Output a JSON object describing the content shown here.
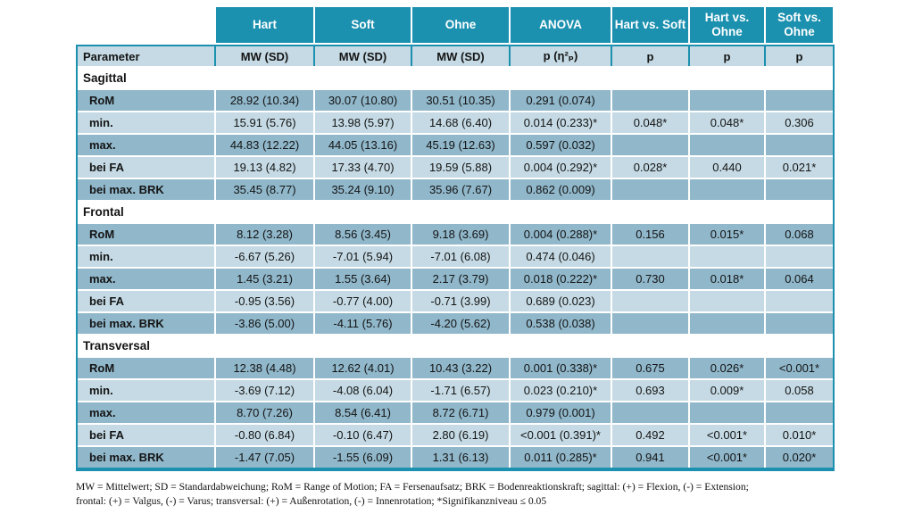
{
  "table": {
    "top_header": [
      "Hart",
      "Soft",
      "Ohne",
      "ANOVA",
      "Hart vs. Soft",
      "Hart vs. Ohne",
      "Soft vs. Ohne"
    ],
    "sub_header": [
      "Parameter",
      "MW (SD)",
      "MW (SD)",
      "MW (SD)",
      "p (η²ₚ)",
      "p",
      "p",
      "p"
    ],
    "sections": [
      {
        "name": "Sagittal",
        "rows": [
          {
            "label": "RoM",
            "cells": [
              "28.92 (10.34)",
              "30.07 (10.80)",
              "30.51 (10.35)",
              "0.291 (0.074)",
              "",
              "",
              ""
            ]
          },
          {
            "label": "min.",
            "cells": [
              "15.91 (5.76)",
              "13.98 (5.97)",
              "14.68 (6.40)",
              "0.014 (0.233)*",
              "0.048*",
              "0.048*",
              "0.306"
            ]
          },
          {
            "label": "max.",
            "cells": [
              "44.83 (12.22)",
              "44.05 (13.16)",
              "45.19 (12.63)",
              "0.597 (0.032)",
              "",
              "",
              ""
            ]
          },
          {
            "label": "bei FA",
            "cells": [
              "19.13 (4.82)",
              "17.33 (4.70)",
              "19.59 (5.88)",
              "0.004 (0.292)*",
              "0.028*",
              "0.440",
              "0.021*"
            ]
          },
          {
            "label": "bei max. BRK",
            "cells": [
              "35.45 (8.77)",
              "35.24 (9.10)",
              "35.96 (7.67)",
              "0.862 (0.009)",
              "",
              "",
              ""
            ]
          }
        ]
      },
      {
        "name": "Frontal",
        "rows": [
          {
            "label": "RoM",
            "cells": [
              "8.12 (3.28)",
              "8.56 (3.45)",
              "9.18 (3.69)",
              "0.004 (0.288)*",
              "0.156",
              "0.015*",
              "0.068"
            ]
          },
          {
            "label": "min.",
            "cells": [
              "-6.67 (5.26)",
              "-7.01 (5.94)",
              "-7.01 (6.08)",
              "0.474 (0.046)",
              "",
              "",
              ""
            ]
          },
          {
            "label": "max.",
            "cells": [
              "1.45 (3.21)",
              "1.55 (3.64)",
              "2.17 (3.79)",
              "0.018 (0.222)*",
              "0.730",
              "0.018*",
              "0.064"
            ]
          },
          {
            "label": "bei FA",
            "cells": [
              "-0.95 (3.56)",
              "-0.77 (4.00)",
              "-0.71 (3.99)",
              "0.689 (0.023)",
              "",
              "",
              ""
            ]
          },
          {
            "label": "bei max. BRK",
            "cells": [
              "-3.86 (5.00)",
              "-4.11 (5.76)",
              "-4.20 (5.62)",
              "0.538 (0.038)",
              "",
              "",
              ""
            ]
          }
        ]
      },
      {
        "name": "Transversal",
        "rows": [
          {
            "label": "RoM",
            "cells": [
              "12.38 (4.48)",
              "12.62 (4.01)",
              "10.43 (3.22)",
              "0.001 (0.338)*",
              "0.675",
              "0.026*",
              "<0.001*"
            ]
          },
          {
            "label": "min.",
            "cells": [
              "-3.69 (7.12)",
              "-4.08 (6.04)",
              "-1.71 (6.57)",
              "0.023 (0.210)*",
              "0.693",
              "0.009*",
              "0.058"
            ]
          },
          {
            "label": "max.",
            "cells": [
              "8.70 (7.26)",
              "8.54 (6.41)",
              "8.72 (6.71)",
              "0.979 (0.001)",
              "",
              "",
              ""
            ]
          },
          {
            "label": "bei FA",
            "cells": [
              "-0.80 (6.84)",
              "-0.10 (6.47)",
              "2.80 (6.19)",
              "<0.001 (0.391)*",
              "0.492",
              "<0.001*",
              "0.010*"
            ]
          },
          {
            "label": "bei max. BRK",
            "cells": [
              "-1.47 (7.05)",
              "-1.55 (6.09)",
              "1.31 (6.13)",
              "0.011 (0.285)*",
              "0.941",
              "<0.001*",
              "0.020*"
            ]
          }
        ]
      }
    ],
    "footnote": [
      "MW = Mittelwert; SD = Standardabweichung; RoM = Range of Motion; FA = Fersenaufsatz; BRK = Bodenreaktionskraft; sagittal: (+) = Flexion, (-) = Extension;",
      "frontal: (+) = Valgus, (-) = Varus; transversal: (+) = Außenrotation, (-) = Innenrotation; *Signifikanzniveau ≤ 0.05"
    ]
  },
  "colors": {
    "header_teal": "#1b90af",
    "row_medium_blue": "#90b7ca",
    "row_light_blue": "#c5dae4",
    "section_row_white": "#ffffff",
    "header_text": "#ffffff",
    "body_text": "#141414"
  }
}
